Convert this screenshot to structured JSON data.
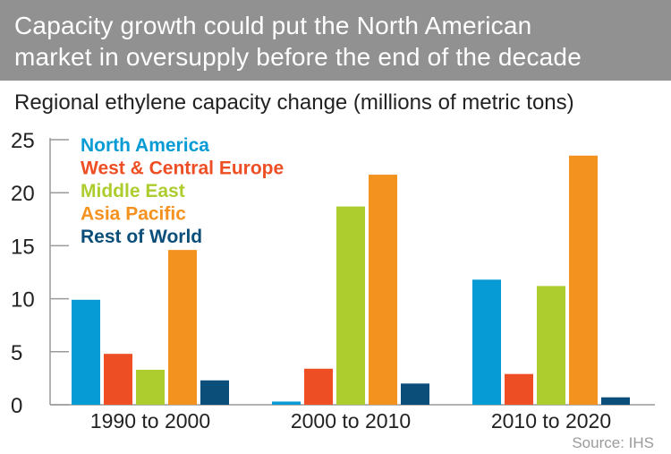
{
  "header": {
    "title_line1": "Capacity growth could put the North American",
    "title_line2": "market in oversupply before the end of the decade"
  },
  "subtitle": "Regional ethylene capacity change (millions of metric tons)",
  "source": "Source: IHS",
  "colors": {
    "header_bg": "#919191",
    "north_america": "#069BD5",
    "west_central_europe": "#EE4E23",
    "middle_east": "#ADCD2F",
    "asia_pacific": "#F49220",
    "rest_of_world": "#0B4E79"
  },
  "chart_data": {
    "type": "bar",
    "title": "Capacity growth could put the North American market in oversupply before the end of the decade",
    "subtitle": "Regional ethylene capacity change (millions of metric tons)",
    "xlabel": "",
    "ylabel": "",
    "categories": [
      "1990 to 2000",
      "2000 to 2010",
      "2010 to 2020"
    ],
    "ylim": [
      0,
      25
    ],
    "yticks": [
      0,
      5,
      10,
      15,
      20,
      25
    ],
    "grid": false,
    "legend_position": "top-left",
    "series": [
      {
        "name": "North America",
        "color": "#069BD5",
        "values": [
          9.9,
          0.3,
          11.8
        ]
      },
      {
        "name": "West & Central Europe",
        "color": "#EE4E23",
        "values": [
          4.8,
          3.4,
          2.9
        ]
      },
      {
        "name": "Middle East",
        "color": "#ADCD2F",
        "values": [
          3.3,
          18.7,
          11.2
        ]
      },
      {
        "name": "Asia Pacific",
        "color": "#F49220",
        "values": [
          14.6,
          21.7,
          23.5
        ]
      },
      {
        "name": "Rest of World",
        "color": "#0B4E79",
        "values": [
          2.3,
          2.0,
          0.7
        ]
      }
    ]
  }
}
